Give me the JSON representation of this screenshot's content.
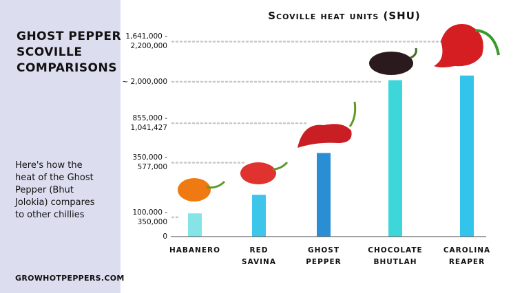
{
  "sidebar": {
    "title": "GHOST PEPPER\nSCOVILLE\nCOMPARISONS",
    "description": "Here's how the\nheat of the Ghost\nPepper (Bhut\nJolokia) compares\nto other chillies",
    "footer": "GROWHOTPEPPERS.COM"
  },
  "chart_data": {
    "type": "bar",
    "title": "Scoville heat units (SHU)",
    "categories": [
      "HABANERO",
      "RED\nSAVINA",
      "GHOST\nPEPPER",
      "CHOCOLATE\nBHUTLAH",
      "CAROLINA\nREAPER"
    ],
    "values": [
      300000,
      540000,
      1080000,
      2020000,
      2080000
    ],
    "colors": [
      "#85e4e8",
      "#3ec6ea",
      "#2a8ed4",
      "#3dd6d9",
      "#33c4ec"
    ],
    "ylim": [
      0,
      2700000
    ],
    "yticks": [
      0,
      {
        "value": 250000,
        "label": "100,000 -\n350,000"
      },
      {
        "value": 955000,
        "label": "350,000 -\n577,000"
      },
      {
        "value": 1464000,
        "label": "855,000 -\n1,041,427"
      },
      {
        "value": 2000000,
        "label": "~ 2,000,000"
      },
      {
        "value": 2518000,
        "label": "1,641,000 -\n2,200,000"
      }
    ],
    "grid": true
  }
}
